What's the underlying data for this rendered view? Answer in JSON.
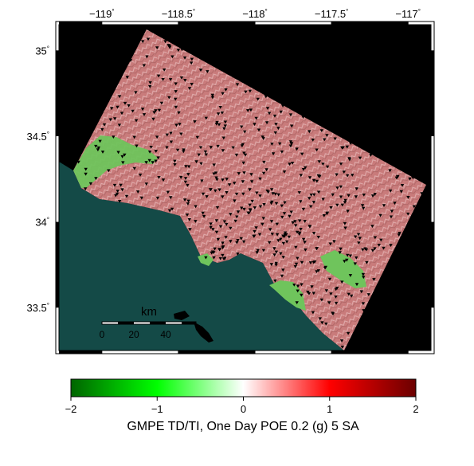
{
  "map": {
    "lon_ticks": [
      {
        "value": -119,
        "label": "−119"
      },
      {
        "value": -118.5,
        "label": "−118.5"
      },
      {
        "value": -118,
        "label": "−118"
      },
      {
        "value": -117.5,
        "label": "−117.5"
      },
      {
        "value": -117,
        "label": "−117"
      }
    ],
    "lat_ticks": [
      {
        "value": 35,
        "label": "35"
      },
      {
        "value": 34.5,
        "label": "34.5"
      },
      {
        "value": 34,
        "label": "34"
      },
      {
        "value": 33.5,
        "label": "33.5"
      }
    ],
    "degree_symbol": "°",
    "colors": {
      "background": "#000000",
      "ocean": "#144a47",
      "land_positive": "#c97b7b",
      "land_negative": "#6fc45c",
      "station": "#000000"
    }
  },
  "scale_bar": {
    "unit": "km",
    "labels": [
      "0",
      "20",
      "40"
    ]
  },
  "colorbar": {
    "title": "GMPE TD/TI, One Day POE 0.2 (g) 5 SA",
    "min": -2,
    "max": 2,
    "tick_labels": [
      "−2",
      "−1",
      "0",
      "1",
      "2"
    ],
    "stops": [
      "#006400",
      "#00ff00",
      "#ffffff",
      "#ff0000",
      "#6b0000"
    ]
  }
}
